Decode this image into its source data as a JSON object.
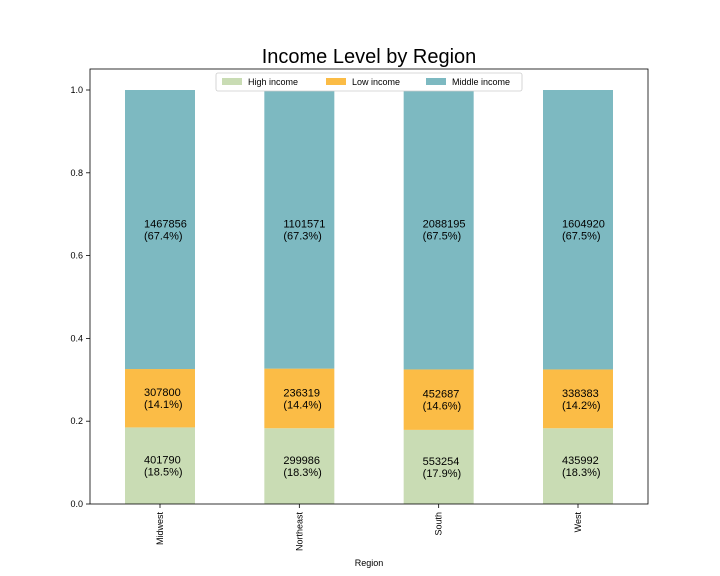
{
  "chart_data": {
    "type": "bar",
    "stacked": true,
    "title": "Income Level by Region",
    "xlabel": "Region",
    "ylabel": "",
    "ylim": [
      0,
      1.0
    ],
    "yticks": [
      "0.0",
      "0.2",
      "0.4",
      "0.6",
      "0.8",
      "1.0"
    ],
    "categories": [
      "Midwest",
      "Northeast",
      "South",
      "West"
    ],
    "legend_position": "top-center",
    "grid": false,
    "series": [
      {
        "name": "High income",
        "color": "#c9dcb4",
        "values": [
          0.185,
          0.183,
          0.179,
          0.183
        ],
        "counts": [
          "401790",
          "299986",
          "553254",
          "435992"
        ],
        "percents": [
          "(18.5%)",
          "(18.3%)",
          "(17.9%)",
          "(18.3%)"
        ]
      },
      {
        "name": "Low income",
        "color": "#fbbc46",
        "values": [
          0.141,
          0.144,
          0.146,
          0.142
        ],
        "counts": [
          "307800",
          "236319",
          "452687",
          "338383"
        ],
        "percents": [
          "(14.1%)",
          "(14.4%)",
          "(14.6%)",
          "(14.2%)"
        ]
      },
      {
        "name": "Middle income",
        "color": "#7db9c1",
        "values": [
          0.674,
          0.673,
          0.675,
          0.675
        ],
        "counts": [
          "1467856",
          "1101571",
          "2088195",
          "1604920"
        ],
        "percents": [
          "(67.4%)",
          "(67.3%)",
          "(67.5%)",
          "(67.5%)"
        ]
      }
    ]
  }
}
